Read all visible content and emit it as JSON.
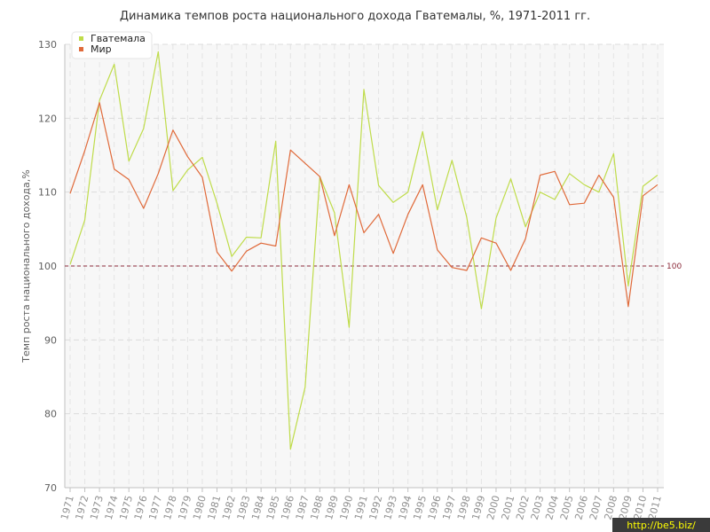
{
  "chart_data": {
    "type": "line",
    "title": "Динамика темпов роста национального дохода Гватемалы, %, 1971-2011 гг.",
    "xlabel": "",
    "ylabel": "Темп роста национального дохода,%",
    "ylim": [
      70,
      130
    ],
    "yticks": [
      "70",
      "80",
      "90",
      "100",
      "110",
      "120",
      "130"
    ],
    "x": [
      "1971",
      "1972",
      "1973",
      "1974",
      "1975",
      "1976",
      "1977",
      "1978",
      "1979",
      "1980",
      "1981",
      "1982",
      "1983",
      "1984",
      "1985",
      "1986",
      "1987",
      "1988",
      "1989",
      "1990",
      "1991",
      "1992",
      "1993",
      "1994",
      "1995",
      "1996",
      "1997",
      "1998",
      "1999",
      "2000",
      "2001",
      "2002",
      "2003",
      "2004",
      "2005",
      "2006",
      "2007",
      "2008",
      "2009",
      "2010",
      "2011"
    ],
    "series": [
      {
        "name": "Гватемала",
        "color": "#bfdc4a",
        "values": [
          100.2,
          106.2,
          122.4,
          127.3,
          114.2,
          118.6,
          129.0,
          110.2,
          113.0,
          114.7,
          108.5,
          101.3,
          103.9,
          103.8,
          116.9,
          75.2,
          83.6,
          112.1,
          107.2,
          91.7,
          123.9,
          110.9,
          108.6,
          110.0,
          118.2,
          107.6,
          114.3,
          106.6,
          94.2,
          106.5,
          111.8,
          105.3,
          110.0,
          109.0,
          112.5,
          111.0,
          110.0,
          115.2,
          97.3,
          110.8,
          112.3
        ]
      },
      {
        "name": "Мир",
        "color": "#e06a3a",
        "values": [
          109.8,
          115.6,
          122.1,
          113.1,
          111.7,
          107.8,
          112.5,
          118.4,
          114.8,
          112.0,
          101.9,
          99.3,
          102.0,
          103.1,
          102.7,
          115.7,
          113.9,
          112.1,
          104.1,
          111.0,
          104.5,
          107.0,
          101.7,
          107.0,
          111.0,
          102.2,
          99.8,
          99.4,
          103.8,
          103.1,
          99.4,
          103.7,
          112.3,
          112.8,
          108.3,
          108.5,
          112.3,
          109.3,
          94.5,
          109.5,
          111.0
        ]
      }
    ],
    "reference_line": {
      "value": 100,
      "label": "100",
      "color": "#8b2a3a"
    },
    "legend": "top-left",
    "grid": true
  },
  "watermark": "http://be5.biz/"
}
